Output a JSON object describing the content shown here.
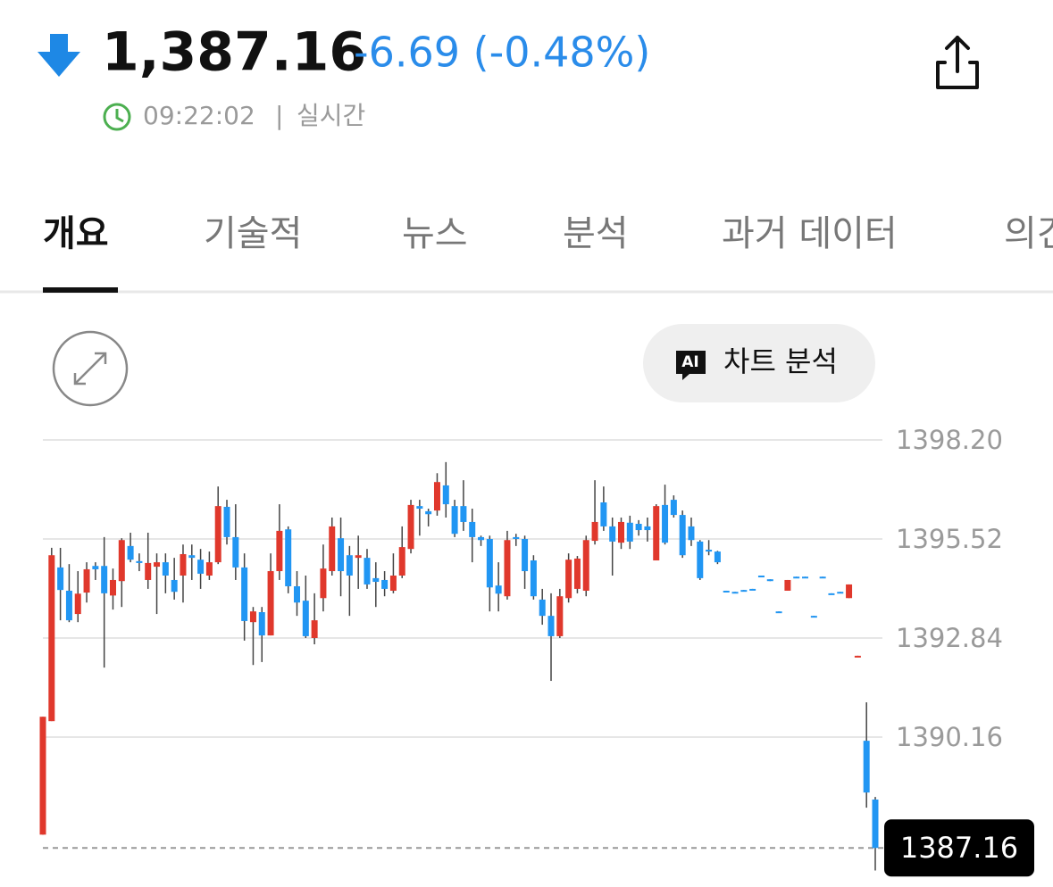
{
  "header": {
    "price": "1,387.16",
    "change": "-6.69 (-0.48%)",
    "time": "09:22:02",
    "status": "실시간"
  },
  "tabs": [
    "개요",
    "기술적",
    "뉴스",
    "분석",
    "과거 데이터",
    "의견"
  ],
  "ai_button": {
    "badge": "AI",
    "label": "차트 분석"
  },
  "chart_data": {
    "type": "candlestick",
    "up_color": "#e0382c",
    "down_color": "#2196f3",
    "ylim": [
      1386.2,
      1398.2
    ],
    "yticks": [
      {
        "value": 1398.2,
        "label": "1398.20"
      },
      1395.52,
      1392.84,
      1390.16
    ],
    "grid": true,
    "current_price": 1387.16,
    "candles": [
      [
        1387.52,
        1390.71,
        1387.52,
        1390.71
      ],
      [
        1390.59,
        1395.28,
        1390.59,
        1395.08
      ],
      [
        1394.75,
        1395.28,
        1393.32,
        1394.14
      ],
      [
        1394.12,
        1394.84,
        1393.27,
        1393.32
      ],
      [
        1393.49,
        1394.65,
        1393.27,
        1394.04
      ],
      [
        1394.07,
        1394.89,
        1393.8,
        1394.7
      ],
      [
        1394.79,
        1394.89,
        1394.41,
        1394.7
      ],
      [
        1394.79,
        1395.57,
        1392.04,
        1394.05
      ],
      [
        1393.99,
        1394.72,
        1393.61,
        1394.41
      ],
      [
        1394.38,
        1395.54,
        1393.68,
        1395.49
      ],
      [
        1395.33,
        1395.69,
        1394.89,
        1394.96
      ],
      [
        1394.92,
        1395.13,
        1394.65,
        1394.87
      ],
      [
        1394.41,
        1395.69,
        1394.17,
        1394.87
      ],
      [
        1394.77,
        1395.13,
        1393.49,
        1394.89
      ],
      [
        1394.89,
        1395.13,
        1394.05,
        1394.53
      ],
      [
        1394.41,
        1395.01,
        1393.88,
        1394.09
      ],
      [
        1394.53,
        1395.37,
        1393.8,
        1395.11
      ],
      [
        1395.08,
        1395.37,
        1394.41,
        1395.01
      ],
      [
        1394.96,
        1395.25,
        1394.17,
        1394.58
      ],
      [
        1394.53,
        1395.18,
        1394.41,
        1394.89
      ],
      [
        1394.89,
        1396.94,
        1394.84,
        1396.41
      ],
      [
        1396.39,
        1396.58,
        1395.37,
        1395.57
      ],
      [
        1395.57,
        1396.46,
        1394.41,
        1394.75
      ],
      [
        1394.75,
        1395.13,
        1392.77,
        1393.3
      ],
      [
        1393.27,
        1393.68,
        1392.11,
        1393.56
      ],
      [
        1393.54,
        1393.68,
        1392.19,
        1392.91
      ],
      [
        1392.91,
        1395.13,
        1392.91,
        1394.65
      ],
      [
        1394.65,
        1396.46,
        1394.41,
        1395.74
      ],
      [
        1395.78,
        1395.86,
        1394.05,
        1394.24
      ],
      [
        1394.24,
        1394.65,
        1393.44,
        1393.8
      ],
      [
        1393.85,
        1394.53,
        1392.84,
        1392.89
      ],
      [
        1392.84,
        1394.05,
        1392.67,
        1393.32
      ],
      [
        1393.92,
        1395.37,
        1393.56,
        1394.72
      ],
      [
        1394.65,
        1396.1,
        1394.53,
        1395.86
      ],
      [
        1395.54,
        1396.1,
        1393.97,
        1394.65
      ],
      [
        1395.08,
        1395.33,
        1393.44,
        1394.53
      ],
      [
        1395.01,
        1395.61,
        1394.17,
        1395.08
      ],
      [
        1395.01,
        1395.25,
        1394.17,
        1394.29
      ],
      [
        1394.46,
        1394.89,
        1393.68,
        1394.36
      ],
      [
        1394.41,
        1394.65,
        1393.97,
        1394.17
      ],
      [
        1394.12,
        1395.13,
        1394.05,
        1394.53
      ],
      [
        1394.53,
        1395.86,
        1394.46,
        1395.3
      ],
      [
        1395.25,
        1396.58,
        1395.13,
        1396.44
      ],
      [
        1396.41,
        1396.58,
        1395.61,
        1396.34
      ],
      [
        1396.27,
        1396.34,
        1395.86,
        1396.19
      ],
      [
        1396.29,
        1397.3,
        1396.15,
        1397.06
      ],
      [
        1396.97,
        1397.6,
        1396.1,
        1396.46
      ],
      [
        1396.41,
        1396.58,
        1395.57,
        1395.66
      ],
      [
        1396.41,
        1397.11,
        1395.74,
        1395.98
      ],
      [
        1395.98,
        1396.34,
        1394.89,
        1395.57
      ],
      [
        1395.57,
        1395.61,
        1395.33,
        1395.49
      ],
      [
        1395.52,
        1395.61,
        1393.56,
        1394.21
      ],
      [
        1394.26,
        1394.89,
        1393.56,
        1394.04
      ],
      [
        1393.97,
        1395.74,
        1393.88,
        1395.49
      ],
      [
        1395.57,
        1395.66,
        1395.33,
        1395.52
      ],
      [
        1395.52,
        1395.61,
        1394.17,
        1394.65
      ],
      [
        1394.94,
        1395.08,
        1393.88,
        1393.97
      ],
      [
        1393.88,
        1394.17,
        1393.2,
        1393.44
      ],
      [
        1393.44,
        1394.05,
        1391.68,
        1392.89
      ],
      [
        1392.89,
        1394.17,
        1392.84,
        1393.97
      ],
      [
        1393.92,
        1395.13,
        1393.8,
        1394.96
      ],
      [
        1394.17,
        1395.06,
        1394.05,
        1394.99
      ],
      [
        1394.12,
        1395.61,
        1393.97,
        1395.49
      ],
      [
        1395.47,
        1397.11,
        1395.37,
        1395.98
      ],
      [
        1396.51,
        1396.94,
        1395.74,
        1395.86
      ],
      [
        1395.86,
        1396.1,
        1394.53,
        1395.45
      ],
      [
        1395.42,
        1396.1,
        1395.25,
        1395.98
      ],
      [
        1395.96,
        1396.15,
        1395.25,
        1395.45
      ],
      [
        1395.93,
        1396.03,
        1395.61,
        1395.76
      ],
      [
        1395.86,
        1396.1,
        1395.45,
        1395.76
      ],
      [
        1394.94,
        1396.46,
        1394.94,
        1396.41
      ],
      [
        1396.44,
        1396.99,
        1395.37,
        1395.42
      ],
      [
        1396.58,
        1396.7,
        1396.1,
        1396.17
      ],
      [
        1396.17,
        1396.29,
        1395.01,
        1395.08
      ],
      [
        1395.86,
        1396.1,
        1395.33,
        1395.49
      ],
      [
        1395.45,
        1395.49,
        1394.41,
        1394.46
      ],
      [
        1395.23,
        1395.49,
        1395.08,
        1395.18
      ],
      [
        1395.18,
        1395.2,
        1394.84,
        1394.89
      ],
      [
        1394.12,
        1394.12,
        1394.09,
        1394.09
      ],
      [
        1394.09,
        1394.09,
        1394.07,
        1394.07
      ],
      [
        1394.14,
        1394.14,
        1394.12,
        1394.12
      ],
      [
        1394.17,
        1394.17,
        1394.14,
        1394.14
      ],
      [
        1394.53,
        1394.53,
        1394.5,
        1394.5
      ],
      [
        1394.43,
        1394.43,
        1394.38,
        1394.38
      ],
      [
        1393.56,
        1393.56,
        1393.54,
        1393.54
      ],
      [
        1394.12,
        1394.41,
        1394.12,
        1394.41
      ],
      [
        1394.5,
        1394.5,
        1394.48,
        1394.48
      ],
      [
        1394.5,
        1394.5,
        1394.48,
        1394.48
      ],
      [
        1393.44,
        1393.44,
        1393.42,
        1393.42
      ],
      [
        1394.5,
        1394.5,
        1394.48,
        1394.48
      ],
      [
        1394.05,
        1394.05,
        1394.02,
        1394.02
      ],
      [
        1394.09,
        1394.09,
        1394.07,
        1394.07
      ],
      [
        1393.92,
        1394.29,
        1393.92,
        1394.29
      ],
      [
        1392.34,
        1392.36,
        1392.34,
        1392.36
      ],
      [
        1390.06,
        1391.1,
        1388.25,
        1388.66
      ],
      [
        1388.47,
        1388.54,
        1386.55,
        1387.16
      ]
    ]
  }
}
